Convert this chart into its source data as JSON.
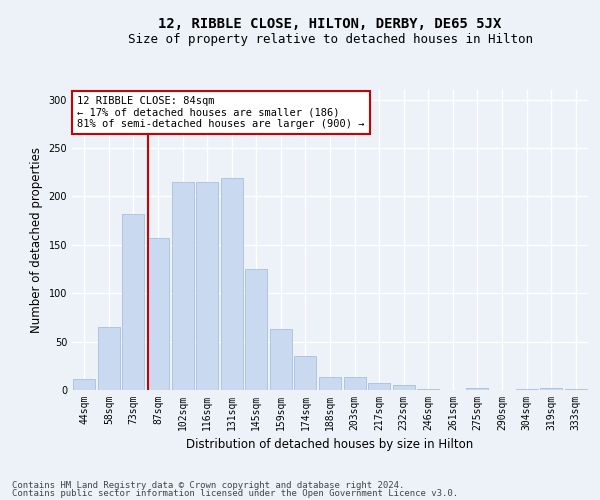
{
  "title": "12, RIBBLE CLOSE, HILTON, DERBY, DE65 5JX",
  "subtitle": "Size of property relative to detached houses in Hilton",
  "xlabel": "Distribution of detached houses by size in Hilton",
  "ylabel": "Number of detached properties",
  "bar_labels": [
    "44sqm",
    "58sqm",
    "73sqm",
    "87sqm",
    "102sqm",
    "116sqm",
    "131sqm",
    "145sqm",
    "159sqm",
    "174sqm",
    "188sqm",
    "203sqm",
    "217sqm",
    "232sqm",
    "246sqm",
    "261sqm",
    "275sqm",
    "290sqm",
    "304sqm",
    "319sqm",
    "333sqm"
  ],
  "bar_heights": [
    11,
    65,
    182,
    157,
    215,
    215,
    219,
    125,
    63,
    35,
    13,
    13,
    7,
    5,
    1,
    0,
    2,
    0,
    1,
    2,
    1
  ],
  "bar_color": "#c9d9f0",
  "bar_edge_color": "#a0b8d8",
  "vline_color": "#cc0000",
  "annotation_text": "12 RIBBLE CLOSE: 84sqm\n← 17% of detached houses are smaller (186)\n81% of semi-detached houses are larger (900) →",
  "annotation_box_color": "#ffffff",
  "annotation_box_edgecolor": "#cc0000",
  "ylim": [
    0,
    310
  ],
  "yticks": [
    0,
    50,
    100,
    150,
    200,
    250,
    300
  ],
  "footer_line1": "Contains HM Land Registry data © Crown copyright and database right 2024.",
  "footer_line2": "Contains public sector information licensed under the Open Government Licence v3.0.",
  "background_color": "#edf2f9",
  "plot_background_color": "#edf2f9",
  "grid_color": "#ffffff",
  "title_fontsize": 10,
  "subtitle_fontsize": 9,
  "axis_label_fontsize": 8.5,
  "tick_fontsize": 7,
  "annotation_fontsize": 7.5,
  "footer_fontsize": 6.5
}
